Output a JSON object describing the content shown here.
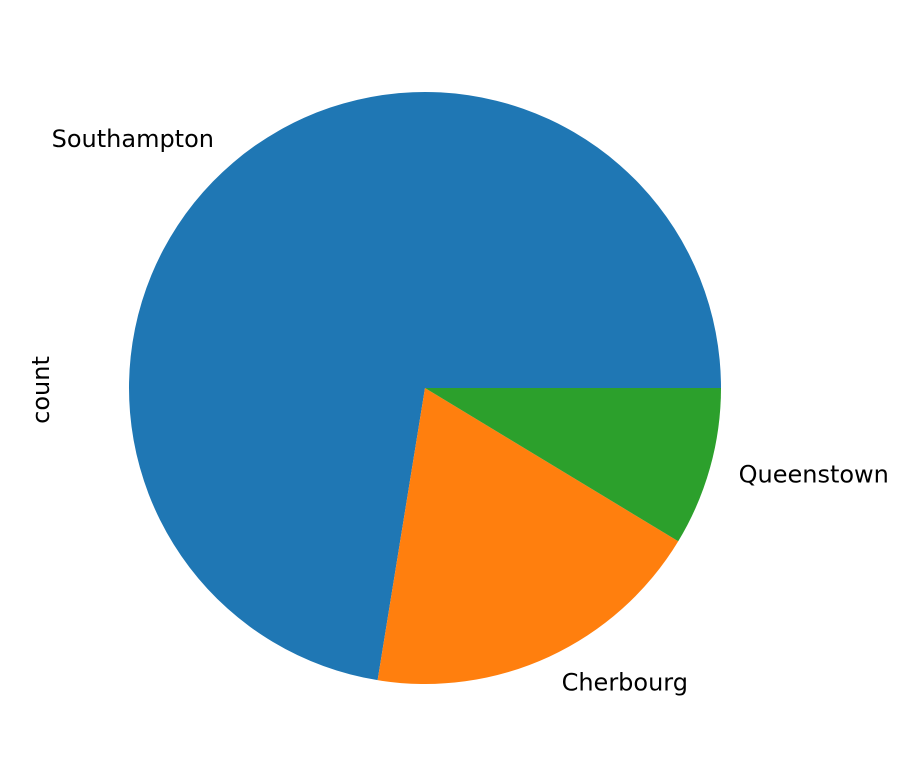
{
  "chart_data": {
    "type": "pie",
    "ylabel": "count",
    "categories": [
      "Southampton",
      "Cherbourg",
      "Queenstown"
    ],
    "values": [
      644,
      168,
      77
    ],
    "colors": [
      "#1f77b4",
      "#ff7f0e",
      "#2ca02c"
    ],
    "start_angle_deg": 0,
    "direction": "counterclockwise"
  }
}
